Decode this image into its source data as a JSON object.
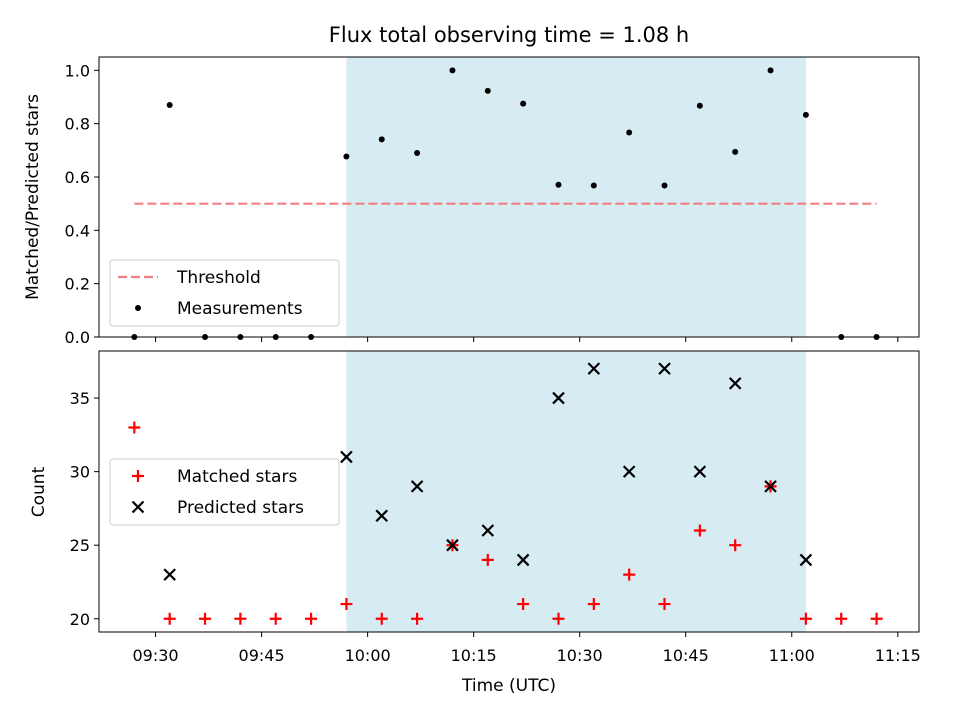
{
  "colors": {
    "threshold": "#f08080",
    "measurement": "#000000",
    "matched": "#ff0000",
    "predicted": "#000000",
    "observing_window": "#add8e6"
  },
  "chart_data": [
    {
      "type": "scatter",
      "title": "Flux total observing time = 1.08 h",
      "xlabel": "",
      "ylabel": "Matched/Predicted stars",
      "ylim": [
        0,
        1.05
      ],
      "xlim": [
        "09:22",
        "11:18"
      ],
      "yticks": [
        "0.0",
        "0.2",
        "0.4",
        "0.6",
        "0.8",
        "1.0"
      ],
      "grid": false,
      "legend_placement": "lower-left",
      "observing_window": [
        "09:57",
        "11:02"
      ],
      "series": [
        {
          "name": "Threshold",
          "style": "dashed-line",
          "x": [
            "09:27",
            "11:12"
          ],
          "y": [
            0.5,
            0.5
          ]
        },
        {
          "name": "Measurements",
          "style": "dot",
          "x": [
            "09:27",
            "09:32",
            "09:37",
            "09:42",
            "09:47",
            "09:52",
            "09:57",
            "10:02",
            "10:07",
            "10:12",
            "10:17",
            "10:22",
            "10:27",
            "10:32",
            "10:37",
            "10:42",
            "10:47",
            "10:52",
            "10:57",
            "11:02",
            "11:07",
            "11:12"
          ],
          "y": [
            0,
            0.87,
            0,
            0,
            0,
            0,
            0.677,
            0.741,
            0.69,
            1.0,
            0.923,
            0.875,
            0.571,
            0.568,
            0.767,
            0.568,
            0.867,
            0.694,
            1.0,
            0.833,
            0,
            0
          ]
        }
      ]
    },
    {
      "type": "scatter",
      "title": "",
      "xlabel": "Time (UTC)",
      "ylabel": "Count",
      "ylim": [
        19.1,
        38.2
      ],
      "xlim": [
        "09:22",
        "11:18"
      ],
      "yticks": [
        "20",
        "25",
        "30",
        "35"
      ],
      "xticks": [
        "09:30",
        "09:45",
        "10:00",
        "10:15",
        "10:30",
        "10:45",
        "11:00",
        "11:15"
      ],
      "grid": false,
      "legend_placement": "center-left",
      "observing_window": [
        "09:57",
        "11:02"
      ],
      "series": [
        {
          "name": "Matched stars",
          "style": "plus",
          "x": [
            "09:27",
            "09:32",
            "09:37",
            "09:42",
            "09:47",
            "09:52",
            "09:57",
            "10:02",
            "10:07",
            "10:12",
            "10:17",
            "10:22",
            "10:27",
            "10:32",
            "10:37",
            "10:42",
            "10:47",
            "10:52",
            "10:57",
            "11:02",
            "11:07",
            "11:12"
          ],
          "y": [
            33,
            20,
            20,
            20,
            20,
            20,
            21,
            20,
            20,
            25,
            24,
            21,
            20,
            21,
            23,
            21,
            26,
            25,
            29,
            20,
            20,
            20
          ]
        },
        {
          "name": "Predicted stars",
          "style": "x",
          "x": [
            "09:32",
            "09:57",
            "10:02",
            "10:07",
            "10:12",
            "10:17",
            "10:22",
            "10:27",
            "10:32",
            "10:37",
            "10:42",
            "10:47",
            "10:52",
            "10:57",
            "11:02"
          ],
          "y": [
            23,
            31,
            27,
            29,
            25,
            26,
            24,
            35,
            37,
            30,
            37,
            30,
            36,
            29,
            24
          ]
        }
      ]
    }
  ]
}
